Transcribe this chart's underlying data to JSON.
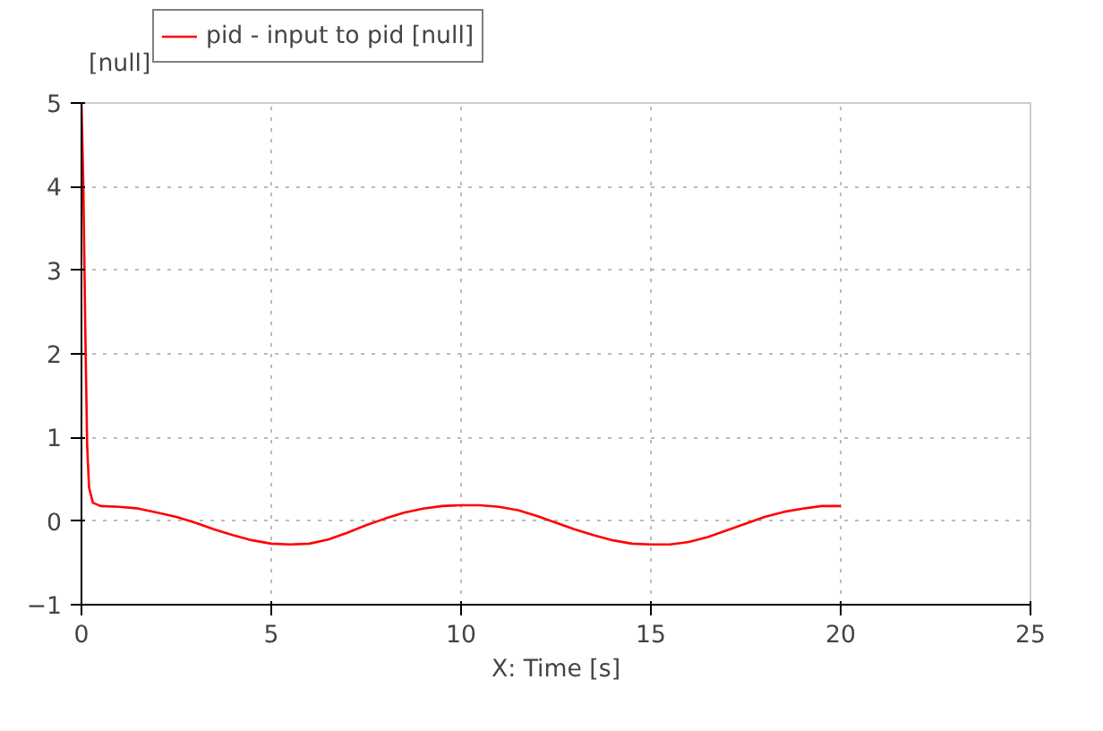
{
  "chart_data": {
    "type": "line",
    "xlabel": "X: Time [s]",
    "ylabel": "[null]",
    "x": [
      0,
      0.05,
      0.1,
      0.15,
      0.2,
      0.3,
      0.5,
      1,
      1.5,
      2,
      2.5,
      3,
      3.5,
      4,
      4.5,
      5,
      5.5,
      6,
      6.5,
      7,
      7.5,
      8,
      8.5,
      9,
      9.5,
      10,
      10.5,
      11,
      11.5,
      12,
      12.5,
      13,
      13.5,
      14,
      14.5,
      15,
      15.5,
      16,
      16.5,
      17,
      17.5,
      18,
      18.5,
      19,
      19.5,
      20
    ],
    "series": [
      {
        "name": "pid - input to pid [null]",
        "color": "#ff0000",
        "values": [
          5,
          4.0,
          2.3,
          0.9,
          0.4,
          0.22,
          0.18,
          0.17,
          0.15,
          0.1,
          0.05,
          -0.02,
          -0.1,
          -0.17,
          -0.23,
          -0.27,
          -0.28,
          -0.27,
          -0.22,
          -0.14,
          -0.05,
          0.03,
          0.1,
          0.15,
          0.18,
          0.19,
          0.19,
          0.17,
          0.13,
          0.06,
          -0.02,
          -0.1,
          -0.17,
          -0.23,
          -0.27,
          -0.28,
          -0.28,
          -0.25,
          -0.19,
          -0.11,
          -0.03,
          0.05,
          0.11,
          0.15,
          0.18,
          0.18
        ]
      }
    ],
    "xlim": [
      0,
      25
    ],
    "ylim": [
      -1,
      5
    ],
    "xticks": [
      0,
      5,
      10,
      15,
      20,
      25
    ],
    "yticks": [
      -1,
      0,
      1,
      2,
      3,
      4,
      5
    ],
    "grid": true,
    "legend": "top left",
    "line_style": "solid",
    "marker": "none"
  }
}
